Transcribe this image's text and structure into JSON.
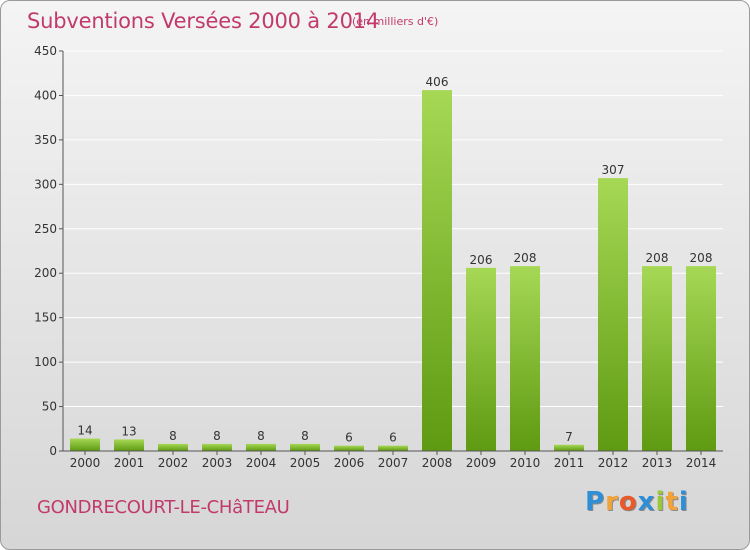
{
  "header": {
    "title": "Subventions Versées 2000 à 2014",
    "units": "(en milliers d'€)"
  },
  "footer": {
    "commune": "GONDRECOURT-LE-CHâTEAU",
    "logo_letters": [
      "P",
      "r",
      "o",
      "x",
      "i",
      "t",
      "i"
    ],
    "logo_colors": [
      "#2e8fd6",
      "#f2a33a",
      "#e85a2a",
      "#2e8fd6",
      "#9ac83a",
      "#f2a33a",
      "#2e8fd6"
    ]
  },
  "colors": {
    "bar_light": "#a6d855",
    "bar_dark": "#5e9a12",
    "text": "#333333",
    "accent": "#c23a6b",
    "grid": "#ffffff"
  },
  "chart_data": {
    "type": "bar",
    "categories": [
      "2000",
      "2001",
      "2002",
      "2003",
      "2004",
      "2005",
      "2006",
      "2007",
      "2008",
      "2009",
      "2010",
      "2011",
      "2012",
      "2013",
      "2014"
    ],
    "values": [
      14,
      13,
      8,
      8,
      8,
      8,
      6,
      6,
      406,
      206,
      208,
      7,
      307,
      208,
      208
    ],
    "title": "Subventions Versées 2000 à 2014",
    "ylim": [
      0,
      450
    ],
    "yticks": [
      0,
      50,
      100,
      150,
      200,
      250,
      300,
      350,
      400,
      450
    ],
    "grid": true
  }
}
